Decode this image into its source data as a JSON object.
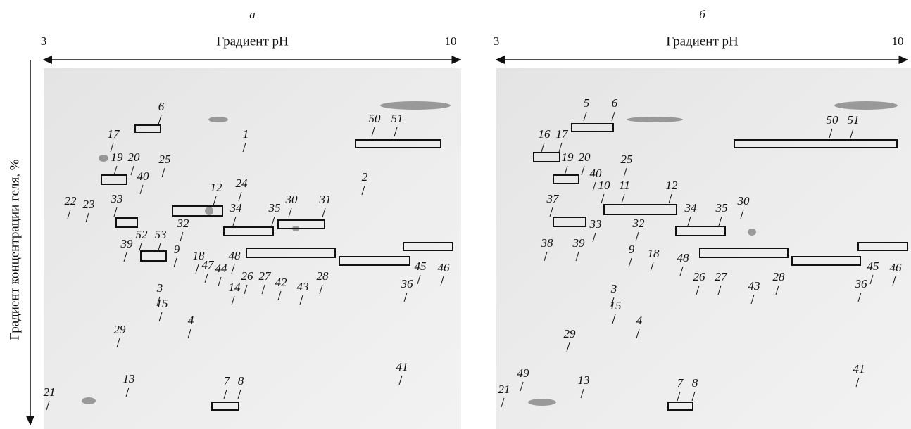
{
  "y_axis_title": "Градиент концентрации геля, %",
  "panels": [
    {
      "letter": "а",
      "ph_min": "3",
      "axis_title": "Градиент pH",
      "ph_max": "10",
      "spots": [
        "6",
        "17",
        "19",
        "20",
        "25",
        "1",
        "50",
        "51",
        "2",
        "40",
        "33",
        "24",
        "12",
        "22",
        "23",
        "34",
        "35",
        "30",
        "31",
        "32",
        "39",
        "52",
        "53",
        "9",
        "18",
        "47",
        "44",
        "48",
        "26",
        "27",
        "28",
        "45",
        "46",
        "36",
        "3",
        "15",
        "14",
        "42",
        "43",
        "4",
        "29",
        "13",
        "7",
        "8",
        "41",
        "21"
      ]
    },
    {
      "letter": "б",
      "ph_min": "3",
      "axis_title": "Градиент pH",
      "ph_max": "10",
      "spots": [
        "5",
        "6",
        "16",
        "17",
        "19",
        "20",
        "25",
        "40",
        "10",
        "11",
        "12",
        "37",
        "33",
        "32",
        "34",
        "35",
        "30",
        "38",
        "39",
        "9",
        "18",
        "48",
        "26",
        "27",
        "28",
        "43",
        "45",
        "46",
        "36",
        "50",
        "51",
        "3",
        "15",
        "4",
        "29",
        "13",
        "49",
        "21",
        "7",
        "8",
        "41"
      ]
    }
  ]
}
